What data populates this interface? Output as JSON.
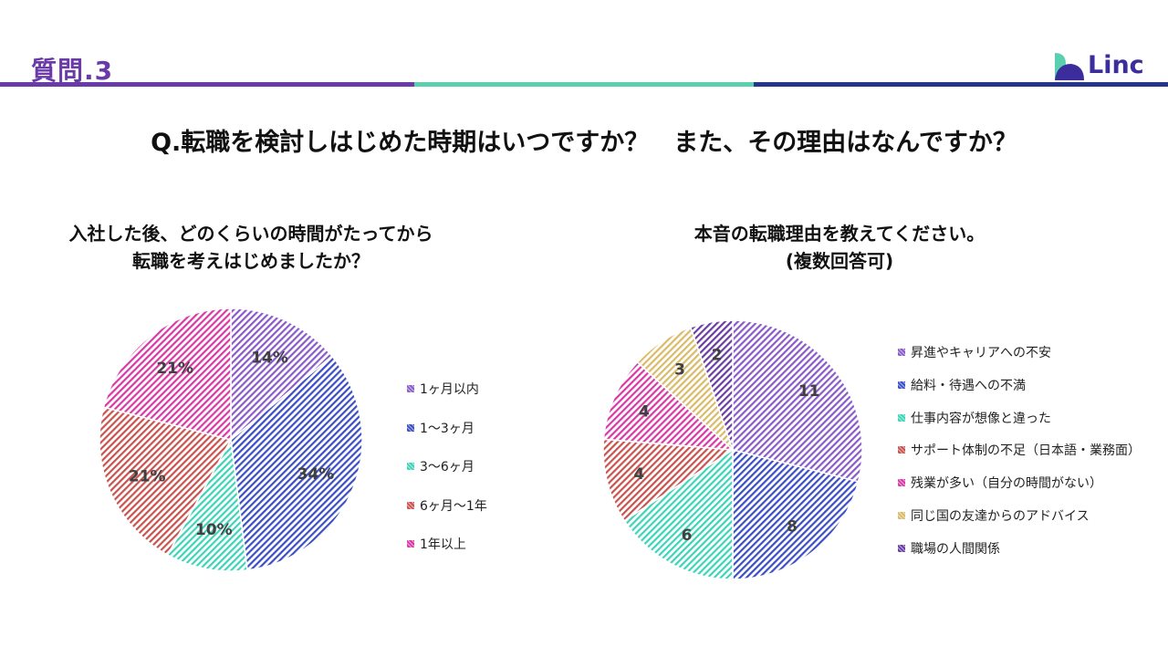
{
  "header": {
    "slide_title": "質問.3",
    "logo_text": "Linc",
    "bar_colors": [
      "#6a3aa8",
      "#5ccfb0",
      "#27348b"
    ]
  },
  "question": "Q.転職を検討しはじめた時期はいつですか？　また、その理由はなんですか？",
  "colors": {
    "purple": "#8a5cc9",
    "blue": "#3d4fc4",
    "teal": "#3ed4b8",
    "red": "#c9544f",
    "pink": "#d93aa6",
    "gold": "#d9bb6a",
    "darkpurple": "#6a3fa3"
  },
  "chart_data": [
    {
      "type": "pie",
      "title_lines": [
        "入社した後、どのくらいの時間がたってから",
        "転職を考えはじめましたか？"
      ],
      "labels": [
        "1ヶ月以内",
        "1～3ヶ月",
        "3～6ヶ月",
        "6ヶ月～1年",
        "1年以上"
      ],
      "values": [
        14,
        34,
        10,
        21,
        21
      ],
      "display_labels": [
        "14%",
        "34%",
        "10%",
        "21%",
        "21%"
      ],
      "unit": "%",
      "legend_position": "right"
    },
    {
      "type": "pie",
      "title_lines": [
        "本音の転職理由を教えてください。",
        "(複数回答可)"
      ],
      "labels": [
        "昇進やキャリアへの不安",
        "給料・待遇への不満",
        "仕事内容が想像と違った",
        "サポート体制の不足（日本語・業務面）",
        "残業が多い（自分の時間がない）",
        "同じ国の友達からのアドバイス",
        "職場の人間関係"
      ],
      "values": [
        11,
        8,
        6,
        4,
        4,
        3,
        2
      ],
      "display_labels": [
        "11",
        "8",
        "6",
        "4",
        "4",
        "3",
        "2"
      ],
      "legend_position": "right"
    }
  ]
}
